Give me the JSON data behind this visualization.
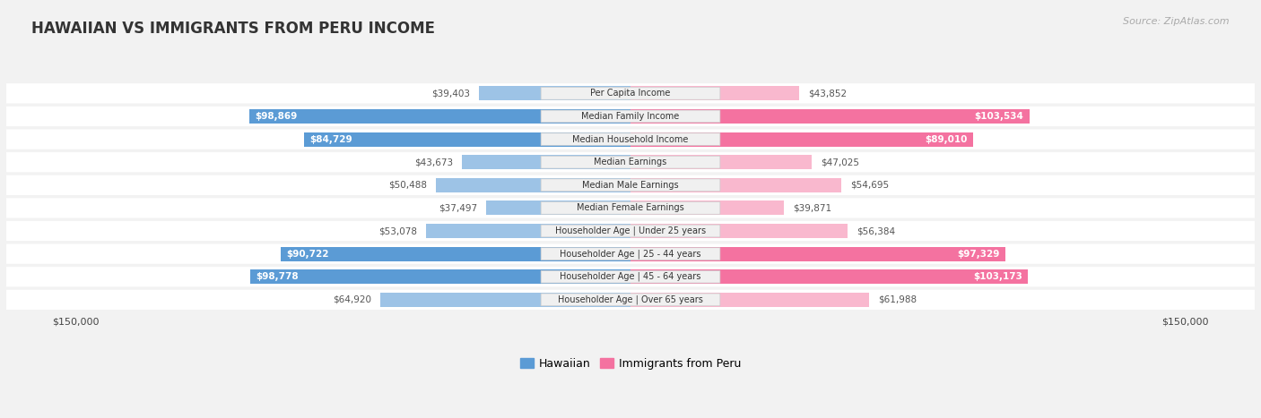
{
  "title": "HAWAIIAN VS IMMIGRANTS FROM PERU INCOME",
  "source": "Source: ZipAtlas.com",
  "categories": [
    "Per Capita Income",
    "Median Family Income",
    "Median Household Income",
    "Median Earnings",
    "Median Male Earnings",
    "Median Female Earnings",
    "Householder Age | Under 25 years",
    "Householder Age | 25 - 44 years",
    "Householder Age | 45 - 64 years",
    "Householder Age | Over 65 years"
  ],
  "hawaiian_values": [
    39403,
    98869,
    84729,
    43673,
    50488,
    37497,
    53078,
    90722,
    98778,
    64920
  ],
  "peru_values": [
    43852,
    103534,
    89010,
    47025,
    54695,
    39871,
    56384,
    97329,
    103173,
    61988
  ],
  "hawaiian_labels": [
    "$39,403",
    "$98,869",
    "$84,729",
    "$43,673",
    "$50,488",
    "$37,497",
    "$53,078",
    "$90,722",
    "$98,778",
    "$64,920"
  ],
  "peru_labels": [
    "$43,852",
    "$103,534",
    "$89,010",
    "$47,025",
    "$54,695",
    "$39,871",
    "$56,384",
    "$97,329",
    "$103,173",
    "$61,988"
  ],
  "max_value": 150000,
  "hawaiian_color_high": "#5b9bd5",
  "hawaiian_color_low": "#9dc3e6",
  "peru_color_high": "#f472a0",
  "peru_color_low": "#f9b8ce",
  "background_color": "#f2f2f2",
  "row_bg_color": "#ffffff",
  "row_alt_bg_color": "#ebebeb",
  "center_label_bg": "#f0f0f0",
  "title_color": "#333333",
  "source_color": "#aaaaaa",
  "high_threshold": 75000,
  "legend_hawaiian": "Hawaiian",
  "legend_peru": "Immigrants from Peru",
  "outside_label_color": "#555555",
  "inside_label_color": "#ffffff"
}
